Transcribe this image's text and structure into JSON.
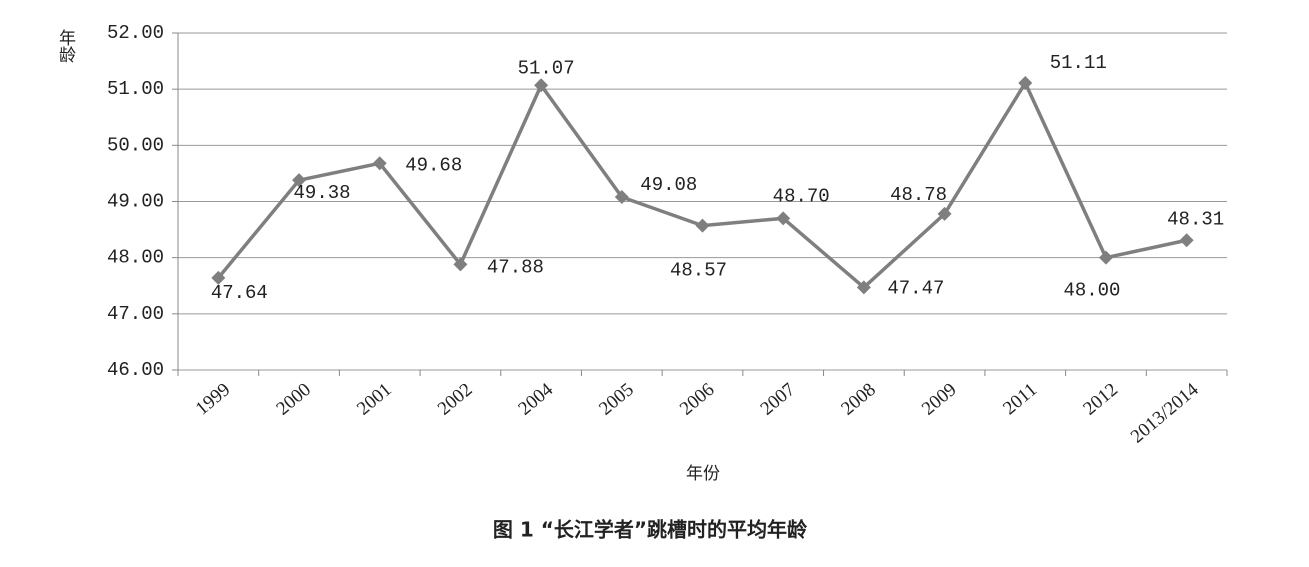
{
  "chart_data": {
    "type": "line",
    "y_label": "年龄",
    "x_label": "年份",
    "caption": "图 1  “长江学者”跳槽时的平均年龄",
    "categories": [
      "1999",
      "2000",
      "2001",
      "2002",
      "2004",
      "2005",
      "2006",
      "2007",
      "2008",
      "2009",
      "2011",
      "2012",
      "2013/2014"
    ],
    "values": [
      47.64,
      49.38,
      49.68,
      47.88,
      51.07,
      49.08,
      48.57,
      48.7,
      47.47,
      48.78,
      51.11,
      48.0,
      48.31
    ],
    "value_labels": [
      "47.64",
      "49.38",
      "49.68",
      "47.88",
      "51.07",
      "49.08",
      "48.57",
      "48.70",
      "47.47",
      "48.78",
      "51.11",
      "48.00",
      "48.31"
    ],
    "color": "#7f7f7f",
    "ylim": [
      46,
      52
    ],
    "yticks": [
      {
        "value": 46,
        "label": "46.00"
      },
      {
        "value": 47,
        "label": "47.00"
      },
      {
        "value": 48,
        "label": "48.00"
      },
      {
        "value": 49,
        "label": "49.00"
      },
      {
        "value": 50,
        "label": "50.00"
      },
      {
        "value": 51,
        "label": "51.00"
      },
      {
        "value": 52,
        "label": "52.00"
      }
    ],
    "grid": true
  }
}
